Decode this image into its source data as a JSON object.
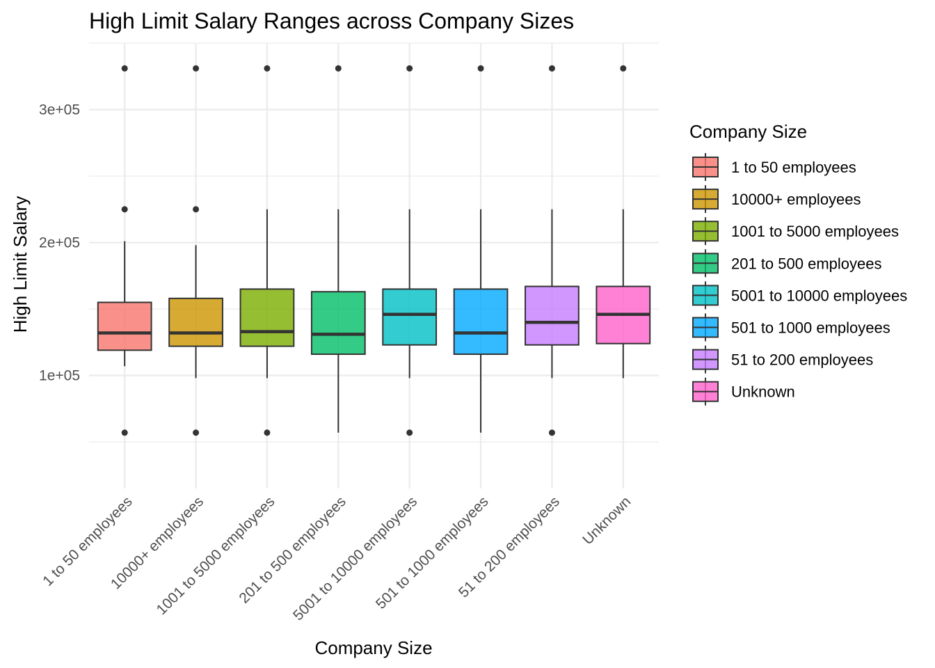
{
  "chart_data": {
    "type": "boxplot",
    "title": "High Limit Salary Ranges across Company Sizes",
    "xlabel": "Company Size",
    "ylabel": "High Limit Salary",
    "ylim": [
      15000,
      350000
    ],
    "y_ticks": [
      100000,
      200000,
      300000
    ],
    "y_tick_labels": [
      "1e+05",
      "2e+05",
      "3e+05"
    ],
    "grid": true,
    "legend": {
      "title": "Company Size",
      "position": "right"
    },
    "categories": [
      "1 to 50 employees",
      "10000+ employees",
      "1001 to 5000 employees",
      "201 to 500 employees",
      "5001 to 10000 employees",
      "501 to 1000 employees",
      "51 to 200 employees",
      "Unknown"
    ],
    "colors": [
      "#F8766D",
      "#CD9600",
      "#7CAE00",
      "#00BE67",
      "#00BFC4",
      "#00A9FF",
      "#C77CFF",
      "#FF61CC"
    ],
    "boxes": [
      {
        "whisker_low": 107000,
        "q1": 119000,
        "median": 132000,
        "q3": 155000,
        "whisker_high": 201000,
        "outliers": [
          57000,
          225000,
          331000
        ]
      },
      {
        "whisker_low": 98000,
        "q1": 122000,
        "median": 132000,
        "q3": 158000,
        "whisker_high": 198000,
        "outliers": [
          57000,
          225000,
          331000
        ]
      },
      {
        "whisker_low": 98000,
        "q1": 122000,
        "median": 133000,
        "q3": 165000,
        "whisker_high": 225000,
        "outliers": [
          57000,
          331000
        ]
      },
      {
        "whisker_low": 57000,
        "q1": 116000,
        "median": 131000,
        "q3": 163000,
        "whisker_high": 225000,
        "outliers": [
          331000
        ]
      },
      {
        "whisker_low": 98000,
        "q1": 123000,
        "median": 146000,
        "q3": 165000,
        "whisker_high": 225000,
        "outliers": [
          57000,
          331000
        ]
      },
      {
        "whisker_low": 57000,
        "q1": 116000,
        "median": 132000,
        "q3": 165000,
        "whisker_high": 225000,
        "outliers": [
          331000
        ]
      },
      {
        "whisker_low": 98000,
        "q1": 123000,
        "median": 140000,
        "q3": 167000,
        "whisker_high": 225000,
        "outliers": [
          57000,
          331000
        ]
      },
      {
        "whisker_low": 98000,
        "q1": 124000,
        "median": 146000,
        "q3": 167000,
        "whisker_high": 225000,
        "outliers": [
          331000
        ]
      }
    ]
  }
}
